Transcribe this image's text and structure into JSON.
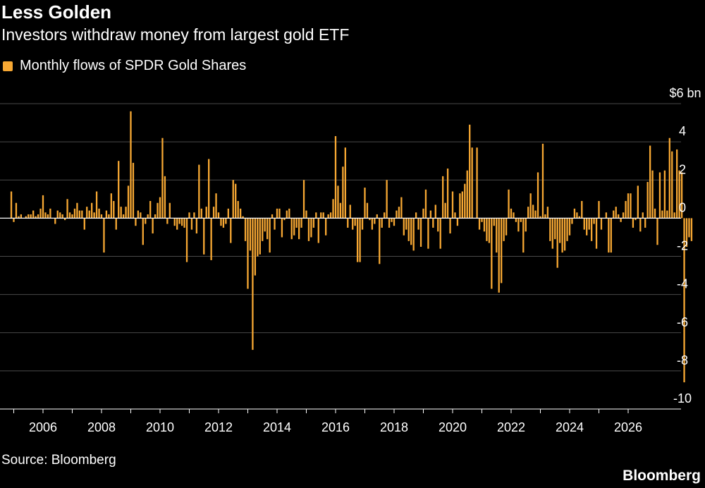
{
  "header": {
    "title": "Less Golden",
    "subtitle": "Investors withdraw money from largest gold ETF"
  },
  "legend": {
    "label": "Monthly flows of SPDR Gold Shares",
    "color": "#f7a833"
  },
  "footer": {
    "source": "Source: Bloomberg",
    "brand": "Bloomberg"
  },
  "chart_data": {
    "type": "bar",
    "title": "Less Golden",
    "subtitle": "Investors withdraw money from largest gold ETF",
    "series": [
      {
        "name": "Monthly flows of SPDR Gold Shares",
        "x_start": "2004-12",
        "values": [
          1.4,
          -0.2,
          0.8,
          0.1,
          0.2,
          0,
          0.1,
          0.2,
          0.2,
          0.4,
          0.1,
          0.2,
          0.5,
          1.2,
          0.3,
          0.2,
          0.5,
          0,
          -0.3,
          0.4,
          0.3,
          0.2,
          -0.1,
          1.0,
          0.3,
          0.2,
          0.5,
          0.8,
          0.4,
          0.4,
          -0.6,
          0.6,
          0.4,
          0.8,
          0.3,
          1.4,
          0.5,
          0.2,
          -1.8,
          0.4,
          0.2,
          1.3,
          0.9,
          -0.6,
          3.0,
          0.6,
          0.2,
          0.6,
          1.7,
          5.6,
          2.9,
          -0.4,
          0.4,
          0.3,
          -1.4,
          -0.3,
          0.2,
          0.9,
          -0.8,
          0.2,
          0.8,
          1.1,
          4.2,
          2.2,
          -0.3,
          0.8,
          0,
          -0.4,
          -0.6,
          -0.3,
          -0.4,
          -0.5,
          -2.3,
          0.3,
          -0.6,
          0.3,
          -0.8,
          2.8,
          0.5,
          -1.9,
          0.6,
          3.1,
          -2.2,
          0.6,
          1.3,
          0.3,
          -0.4,
          -0.5,
          -0.3,
          0.5,
          -1.3,
          2.0,
          1.8,
          0.9,
          0.5,
          0.1,
          -1.2,
          -3.7,
          -1.7,
          -6.9,
          -3.0,
          -2.0,
          -1.9,
          -1.2,
          -0.7,
          -1.1,
          -1.8,
          0.2,
          -0.6,
          0.5,
          0.5,
          -1.0,
          -0.1,
          0.4,
          0.5,
          -1.1,
          -0.9,
          -0.5,
          -1.1,
          -0.5,
          2.0,
          0.4,
          -1.2,
          -1.0,
          -0.5,
          0.3,
          -1.3,
          0.3,
          0.3,
          -0.9,
          0.2,
          0.3,
          1.0,
          4.3,
          1.7,
          0.8,
          2.7,
          3.7,
          -0.5,
          0.7,
          -0.6,
          -0.4,
          -2.3,
          -2.3,
          -0.6,
          1.6,
          0.8,
          -0.1,
          -0.6,
          -0.3,
          0.2,
          -2.4,
          -0.5,
          0.3,
          2.0,
          -0.5,
          -0.2,
          -0.4,
          0.4,
          0.6,
          1.1,
          -0.9,
          -0.6,
          -1.2,
          -1.4,
          -1.7,
          0.3,
          -0.6,
          -1.5,
          0.5,
          1.5,
          -1.6,
          0.4,
          -0.5,
          0.7,
          -0.7,
          -1.6,
          2.2,
          0.8,
          2.6,
          -0.8,
          1.4,
          0.3,
          -0.4,
          1.3,
          1.4,
          1.8,
          2.5,
          4.9,
          3.7,
          0,
          3.7,
          -0.6,
          -0.2,
          -0.7,
          -1.2,
          -1.3,
          -3.7,
          -0.4,
          -1.8,
          -3.9,
          -3.4,
          -1.2,
          -0.9,
          1.5,
          0.5,
          0.3,
          -0.2,
          -0.7,
          -0.2,
          -1.8,
          -0.7,
          0.6,
          1.3,
          0.7,
          0.4,
          2.4,
          0.1,
          3.9,
          0.2,
          0.6,
          -1.2,
          -1.6,
          -1.1,
          -2.6,
          -1.3,
          -1.8,
          -1.7,
          -1.2,
          -0.9,
          -0.3,
          0.5,
          0.3,
          0.1,
          0.9,
          -0.6,
          -0.9,
          -0.6,
          -1.2,
          -0.3,
          -1.6,
          0.9,
          -0.6,
          0,
          0.3,
          -1.8,
          -1.8,
          0.4,
          0.6,
          0.2,
          -0.2,
          0.3,
          0.9,
          1.3,
          1.3,
          -0.5,
          -0.1,
          1.7,
          -0.7,
          0.3,
          -0.5,
          1.9,
          3.8,
          2.5,
          0.5,
          -1.4,
          2.4,
          0.4,
          2.5,
          0.4,
          4.2,
          3.5,
          0.3,
          3.6,
          2.5,
          2.4,
          -8.6,
          -1.5,
          -1.0,
          -1.2
        ]
      }
    ],
    "x_ticks": [
      "2006",
      "2008",
      "2010",
      "2012",
      "2014",
      "2016",
      "2018",
      "2020",
      "2022",
      "2024",
      "2026"
    ],
    "y_ticks": [
      "$6 bn",
      "4",
      "2",
      "0",
      "-2",
      "-4",
      "-6",
      "-8",
      "-10"
    ],
    "ylim": [
      -10,
      6
    ],
    "ylabel": "",
    "xlabel": "",
    "grid": true,
    "legend_position": "top-left"
  }
}
